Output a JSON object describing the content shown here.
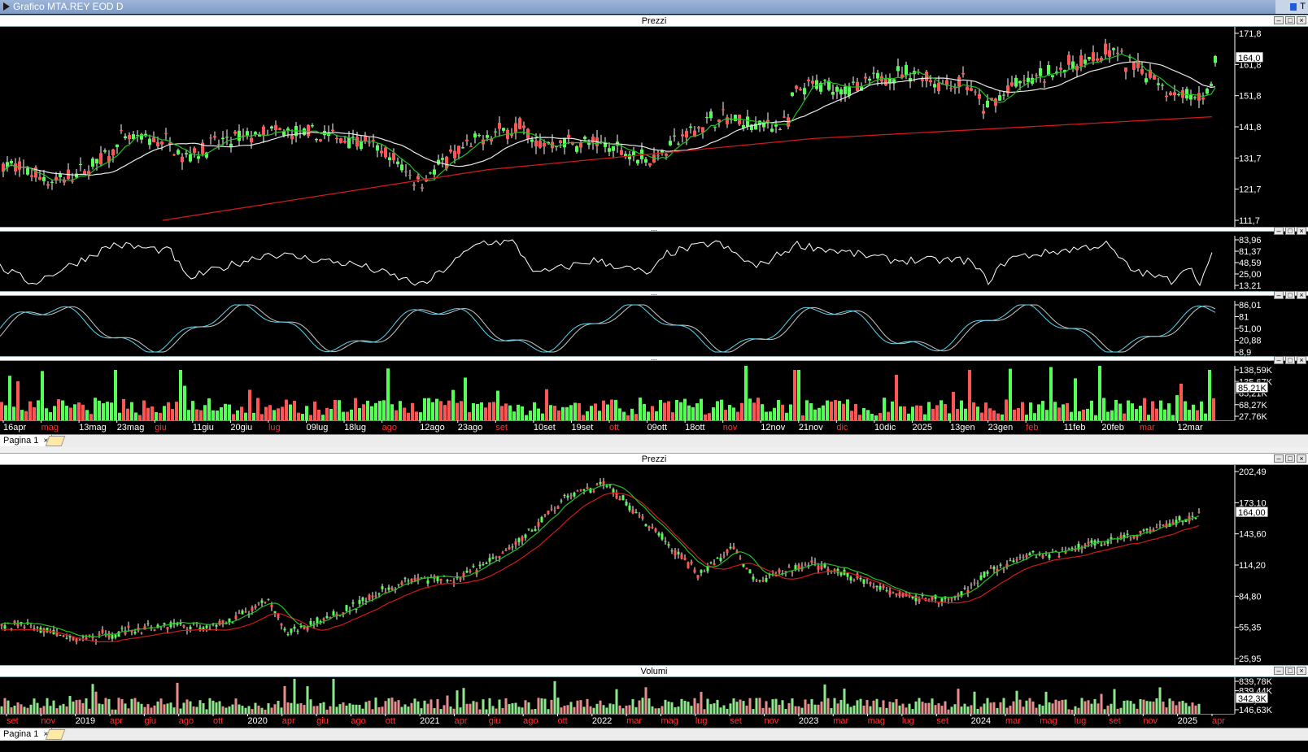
{
  "window": {
    "title": "Grafico MTA.REY EOD D",
    "corner": "T"
  },
  "top_chart": {
    "panel_title": "Prezzi",
    "price_ticks": [
      "171,8",
      "161,8",
      "151,8",
      "141,8",
      "131,7",
      "121,7",
      "111,7"
    ],
    "last_price": "164,0",
    "rsi_ticks": [
      "83,96",
      "81,37",
      "48,59",
      "25,00",
      "13,21"
    ],
    "stoch_ticks": [
      "86,01",
      "81",
      "51,00",
      "20,88",
      "8,9"
    ],
    "volume_ticks": [
      "138,59K",
      "135,67K",
      "85,21K",
      "68,27K",
      "27,76K"
    ],
    "volume_badge": "85,21K",
    "months": [
      {
        "t": "16apr",
        "red": false
      },
      {
        "t": "mag",
        "red": true
      },
      {
        "t": "13mag",
        "red": false
      },
      {
        "t": "23mag",
        "red": false
      },
      {
        "t": "giu",
        "red": true
      },
      {
        "t": "11giu",
        "red": false
      },
      {
        "t": "20giu",
        "red": false
      },
      {
        "t": "lug",
        "red": true
      },
      {
        "t": "09lug",
        "red": false
      },
      {
        "t": "18lug",
        "red": false
      },
      {
        "t": "ago",
        "red": true
      },
      {
        "t": "12ago",
        "red": false
      },
      {
        "t": "23ago",
        "red": false
      },
      {
        "t": "set",
        "red": true
      },
      {
        "t": "10set",
        "red": false
      },
      {
        "t": "19set",
        "red": false
      },
      {
        "t": "ott",
        "red": true
      },
      {
        "t": "09ott",
        "red": false
      },
      {
        "t": "18ott",
        "red": false
      },
      {
        "t": "nov",
        "red": true
      },
      {
        "t": "12nov",
        "red": false
      },
      {
        "t": "21nov",
        "red": false
      },
      {
        "t": "dic",
        "red": true
      },
      {
        "t": "10dic",
        "red": false
      },
      {
        "t": "2025",
        "red": false
      },
      {
        "t": "13gen",
        "red": false
      },
      {
        "t": "23gen",
        "red": false
      },
      {
        "t": "feb",
        "red": true
      },
      {
        "t": "11feb",
        "red": false
      },
      {
        "t": "20feb",
        "red": false
      },
      {
        "t": "mar",
        "red": true
      },
      {
        "t": "12mar",
        "red": false
      }
    ],
    "tab_label": "Pagina 1"
  },
  "bottom_chart": {
    "panel_title": "Prezzi",
    "price_ticks": [
      "202,49",
      "173,10",
      "143,60",
      "114,20",
      "84,80",
      "55,35",
      "25,95"
    ],
    "last_price": "164,00",
    "volume_title": "Volumi",
    "volume_ticks": [
      "839,78K",
      "839,44K",
      "342,3K",
      "146,63K"
    ],
    "volume_badge": "342,3K",
    "months": [
      {
        "t": "set",
        "red": true
      },
      {
        "t": "nov",
        "red": true
      },
      {
        "t": "2019",
        "red": false
      },
      {
        "t": "apr",
        "red": true
      },
      {
        "t": "giu",
        "red": true
      },
      {
        "t": "ago",
        "red": true
      },
      {
        "t": "ott",
        "red": true
      },
      {
        "t": "2020",
        "red": false
      },
      {
        "t": "apr",
        "red": true
      },
      {
        "t": "giu",
        "red": true
      },
      {
        "t": "ago",
        "red": true
      },
      {
        "t": "ott",
        "red": true
      },
      {
        "t": "2021",
        "red": false
      },
      {
        "t": "apr",
        "red": true
      },
      {
        "t": "giu",
        "red": true
      },
      {
        "t": "ago",
        "red": true
      },
      {
        "t": "ott",
        "red": true
      },
      {
        "t": "2022",
        "red": false
      },
      {
        "t": "mar",
        "red": true
      },
      {
        "t": "mag",
        "red": true
      },
      {
        "t": "lug",
        "red": true
      },
      {
        "t": "set",
        "red": true
      },
      {
        "t": "nov",
        "red": true
      },
      {
        "t": "2023",
        "red": false
      },
      {
        "t": "mar",
        "red": true
      },
      {
        "t": "mag",
        "red": true
      },
      {
        "t": "lug",
        "red": true
      },
      {
        "t": "set",
        "red": true
      },
      {
        "t": "2024",
        "red": false
      },
      {
        "t": "mar",
        "red": true
      },
      {
        "t": "mag",
        "red": true
      },
      {
        "t": "lug",
        "red": true
      },
      {
        "t": "set",
        "red": true
      },
      {
        "t": "nov",
        "red": true
      },
      {
        "t": "2025",
        "red": false
      },
      {
        "t": "apr",
        "red": true
      }
    ],
    "tab_label": "Pagina 1"
  },
  "colors": {
    "up": "#55ff55",
    "down": "#ff5555",
    "ma_short": "#22c022",
    "ma_long": "#e8e8e8",
    "ma_trend": "#d01a1a",
    "stoch_k": "#5fd7f0",
    "bg": "#000000"
  }
}
